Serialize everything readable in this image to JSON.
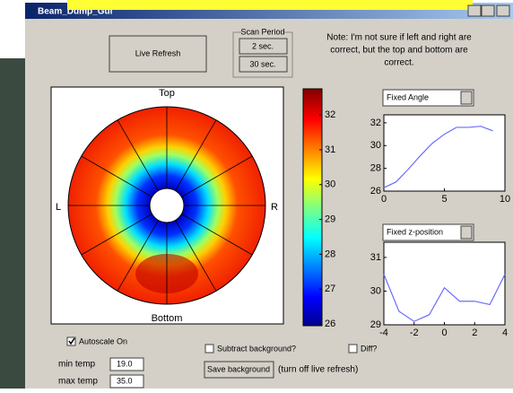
{
  "window": {
    "title": "Beam_Dump_Gui"
  },
  "controls": {
    "live_refresh": "Live Refresh",
    "scan_period": {
      "title": "Scan Period",
      "options": [
        "2 sec.",
        "30 sec."
      ]
    },
    "note_lines": [
      "Note: I'm not sure if left and right are",
      "correct, but the top and bottom are",
      "correct."
    ],
    "dropdown_1": "Fixed Angle",
    "dropdown_2": "Fixed z-position",
    "autoscale": {
      "label": "Autoscale On",
      "checked": true
    },
    "subtract_background": {
      "label": "Subtract background?",
      "checked": false
    },
    "diff": {
      "label": "Diff?",
      "checked": false
    },
    "min_temp": {
      "label": "min temp",
      "value": "19.0"
    },
    "max_temp": {
      "label": "max temp",
      "value": "35.0"
    },
    "save_background": "Save background",
    "save_note": "(turn off live refresh)"
  },
  "polar_plot": {
    "top": "Top",
    "left": "L",
    "right": "R",
    "bottom": "Bottom"
  },
  "chart_data": [
    {
      "type": "colorbar",
      "ylim": [
        25.95,
        32.75
      ],
      "yticks": [
        26,
        27,
        28,
        29,
        30,
        31,
        32
      ]
    },
    {
      "type": "line",
      "color": "#6b6bff",
      "x": [
        0,
        1,
        2,
        3,
        4,
        5,
        6,
        7,
        8,
        9
      ],
      "values": [
        26.3,
        26.8,
        27.9,
        29.1,
        30.2,
        31.0,
        31.6,
        31.6,
        31.7,
        31.3
      ],
      "xlim": [
        0,
        10
      ],
      "ylim": [
        26,
        32.7
      ],
      "xticks": [
        0,
        5,
        10
      ],
      "yticks": [
        26,
        28,
        30,
        32
      ]
    },
    {
      "type": "line",
      "color": "#6b6bff",
      "x": [
        -4,
        -3,
        -2,
        -1,
        0,
        1,
        2,
        3,
        4
      ],
      "values": [
        30.5,
        29.4,
        29.1,
        29.3,
        30.1,
        29.7,
        29.7,
        29.6,
        30.5
      ],
      "xlim": [
        -4,
        4
      ],
      "ylim": [
        29,
        31.45
      ],
      "xticks": [
        -4,
        -2,
        0,
        2,
        4
      ],
      "yticks": [
        29,
        30,
        31
      ]
    }
  ]
}
